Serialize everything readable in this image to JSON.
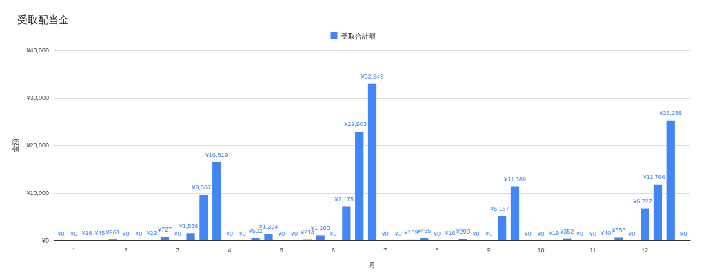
{
  "chart_data": {
    "type": "bar",
    "title": "受取配当金",
    "xlabel": "月",
    "ylabel": "金額",
    "categories": [
      null,
      "1",
      null,
      null,
      null,
      "2",
      null,
      null,
      null,
      "3",
      null,
      null,
      null,
      "4",
      null,
      null,
      null,
      "5",
      null,
      null,
      null,
      "6",
      null,
      null,
      null,
      "7",
      null,
      null,
      null,
      "8",
      null,
      null,
      null,
      "9",
      null,
      null,
      null,
      "10",
      null,
      null,
      null,
      "11",
      null,
      null,
      null,
      "12",
      null,
      null,
      null
    ],
    "series": [
      {
        "name": "受取合計額",
        "color": "#4285f4",
        "values": [
          0,
          0,
          16,
          45,
          261,
          0,
          0,
          22,
          727,
          0,
          1556,
          9567,
          16519,
          0,
          0,
          502,
          1324,
          0,
          0,
          214,
          1100,
          0,
          7175,
          22903,
          32949,
          0,
          0,
          169,
          455,
          0,
          16,
          299,
          0,
          0,
          5167,
          11389,
          0,
          0,
          19,
          352,
          0,
          0,
          40,
          655,
          0,
          6727,
          11766,
          25256,
          0
        ],
        "value_labels": [
          "¥0",
          "¥0",
          "¥16",
          "¥45",
          "¥261",
          "¥0",
          "¥0",
          "¥22",
          "¥727",
          "¥0",
          "¥1,556",
          "¥9,567",
          "¥16,519",
          "¥0",
          "¥0",
          "¥502",
          "¥1,324",
          "¥0",
          "¥0",
          "¥214",
          "¥1,100",
          "¥0",
          "¥7,175",
          "¥22,903",
          "¥32,949",
          "¥0",
          "¥0",
          "¥169",
          "¥455",
          "¥0",
          "¥16",
          "¥299",
          "¥0",
          "¥0",
          "¥5,167",
          "¥11,389",
          "¥0",
          "¥0",
          "¥19",
          "¥352",
          "¥0",
          "¥0",
          "¥40",
          "¥655",
          "¥0",
          "¥6,727",
          "¥11,766",
          "¥25,256",
          "¥0"
        ]
      }
    ],
    "ylim": [
      0,
      40000
    ],
    "yticks": [
      {
        "value": 0,
        "label": "¥0"
      },
      {
        "value": 10000,
        "label": "¥10,000"
      },
      {
        "value": 20000,
        "label": "¥20,000"
      },
      {
        "value": 30000,
        "label": "¥30,000"
      },
      {
        "value": 40000,
        "label": "¥40,000"
      }
    ],
    "grid": "y",
    "legend": "top"
  }
}
